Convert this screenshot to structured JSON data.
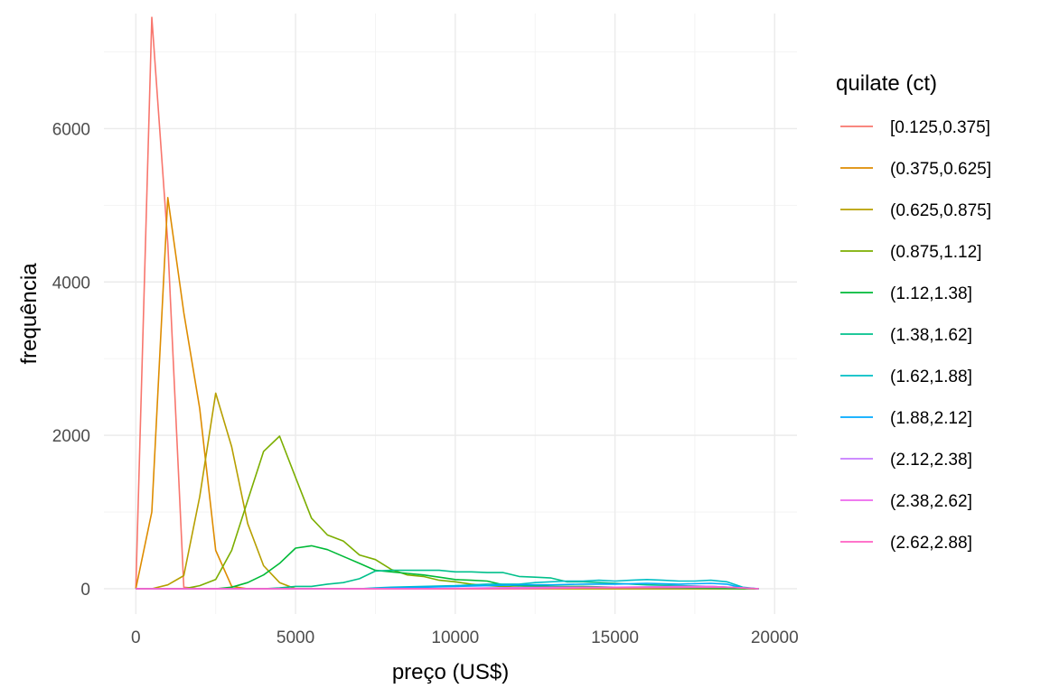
{
  "chart_data": {
    "type": "line",
    "xlabel": "preço (US$)",
    "ylabel": "frequência",
    "xlim": [
      -1000,
      20700
    ],
    "ylim": [
      -330,
      7500
    ],
    "x_ticks": [
      0,
      5000,
      10000,
      15000,
      20000
    ],
    "x_tick_labels": [
      "0",
      "5000",
      "10000",
      "15000",
      "20000"
    ],
    "y_ticks": [
      0,
      2000,
      4000,
      6000
    ],
    "y_tick_labels": [
      "0",
      "2000",
      "4000",
      "6000"
    ],
    "x_minor": [
      2500,
      7500,
      12500,
      17500
    ],
    "y_minor": [
      1000,
      3000,
      5000,
      7000
    ],
    "grid": true,
    "legend": {
      "title": "quilate (ct)",
      "position": "right"
    },
    "series": [
      {
        "name": "[0.125,0.375]",
        "color": "#F8766D",
        "points": [
          [
            0,
            0
          ],
          [
            500,
            7450
          ],
          [
            1000,
            4500
          ],
          [
            1500,
            20
          ],
          [
            2000,
            0
          ],
          [
            19500,
            0
          ]
        ]
      },
      {
        "name": "(0.375,0.625]",
        "color": "#DE8C00",
        "points": [
          [
            0,
            0
          ],
          [
            500,
            1000
          ],
          [
            1000,
            5100
          ],
          [
            1500,
            3600
          ],
          [
            2000,
            2350
          ],
          [
            2500,
            500
          ],
          [
            3000,
            30
          ],
          [
            3500,
            0
          ],
          [
            19500,
            0
          ]
        ]
      },
      {
        "name": "(0.625,0.875]",
        "color": "#B79F00",
        "points": [
          [
            0,
            0
          ],
          [
            500,
            0
          ],
          [
            1000,
            50
          ],
          [
            1500,
            170
          ],
          [
            2000,
            1200
          ],
          [
            2500,
            2550
          ],
          [
            3000,
            1850
          ],
          [
            3500,
            850
          ],
          [
            4000,
            300
          ],
          [
            4500,
            80
          ],
          [
            5000,
            0
          ],
          [
            19500,
            0
          ]
        ]
      },
      {
        "name": "(0.875,1.12]",
        "color": "#7CAE00",
        "points": [
          [
            0,
            0
          ],
          [
            1000,
            0
          ],
          [
            1500,
            0
          ],
          [
            2000,
            40
          ],
          [
            2500,
            120
          ],
          [
            3000,
            500
          ],
          [
            3500,
            1150
          ],
          [
            4000,
            1790
          ],
          [
            4500,
            1990
          ],
          [
            5000,
            1450
          ],
          [
            5500,
            920
          ],
          [
            6000,
            700
          ],
          [
            6500,
            620
          ],
          [
            7000,
            440
          ],
          [
            7500,
            380
          ],
          [
            8000,
            250
          ],
          [
            8500,
            180
          ],
          [
            9000,
            160
          ],
          [
            9500,
            110
          ],
          [
            10000,
            90
          ],
          [
            10500,
            60
          ],
          [
            11000,
            40
          ],
          [
            12000,
            20
          ],
          [
            14000,
            10
          ],
          [
            19500,
            0
          ]
        ]
      },
      {
        "name": "(1.12,1.38]",
        "color": "#00BA38",
        "points": [
          [
            0,
            0
          ],
          [
            2000,
            0
          ],
          [
            2500,
            0
          ],
          [
            3000,
            20
          ],
          [
            3500,
            80
          ],
          [
            4000,
            180
          ],
          [
            4500,
            330
          ],
          [
            5000,
            530
          ],
          [
            5500,
            560
          ],
          [
            6000,
            510
          ],
          [
            6500,
            420
          ],
          [
            7000,
            330
          ],
          [
            7500,
            240
          ],
          [
            8000,
            220
          ],
          [
            8500,
            200
          ],
          [
            9000,
            180
          ],
          [
            9500,
            150
          ],
          [
            10000,
            120
          ],
          [
            10500,
            110
          ],
          [
            11000,
            100
          ],
          [
            11500,
            50
          ],
          [
            12000,
            40
          ],
          [
            13000,
            30
          ],
          [
            14000,
            30
          ],
          [
            15000,
            20
          ],
          [
            19500,
            0
          ]
        ]
      },
      {
        "name": "(1.38,1.62]",
        "color": "#00C08B",
        "points": [
          [
            0,
            0
          ],
          [
            4000,
            0
          ],
          [
            4500,
            10
          ],
          [
            5000,
            30
          ],
          [
            5500,
            30
          ],
          [
            6000,
            60
          ],
          [
            6500,
            80
          ],
          [
            7000,
            130
          ],
          [
            7500,
            230
          ],
          [
            8000,
            240
          ],
          [
            8500,
            240
          ],
          [
            9000,
            240
          ],
          [
            9500,
            240
          ],
          [
            10000,
            220
          ],
          [
            10500,
            220
          ],
          [
            11000,
            210
          ],
          [
            11500,
            210
          ],
          [
            12000,
            160
          ],
          [
            12500,
            150
          ],
          [
            13000,
            140
          ],
          [
            13500,
            90
          ],
          [
            14000,
            90
          ],
          [
            15000,
            70
          ],
          [
            16000,
            50
          ],
          [
            17000,
            40
          ],
          [
            18000,
            30
          ],
          [
            19000,
            10
          ],
          [
            19500,
            0
          ]
        ]
      },
      {
        "name": "(1.62,1.88]",
        "color": "#00BFC4",
        "points": [
          [
            0,
            0
          ],
          [
            7000,
            0
          ],
          [
            7500,
            10
          ],
          [
            8000,
            20
          ],
          [
            9000,
            30
          ],
          [
            10000,
            40
          ],
          [
            11000,
            60
          ],
          [
            12000,
            60
          ],
          [
            12500,
            80
          ],
          [
            13000,
            90
          ],
          [
            13500,
            100
          ],
          [
            14000,
            100
          ],
          [
            14500,
            110
          ],
          [
            15000,
            100
          ],
          [
            15500,
            110
          ],
          [
            16000,
            120
          ],
          [
            16500,
            110
          ],
          [
            17000,
            100
          ],
          [
            17500,
            100
          ],
          [
            18000,
            110
          ],
          [
            18500,
            90
          ],
          [
            19000,
            20
          ],
          [
            19500,
            0
          ]
        ]
      },
      {
        "name": "(1.88,2.12]",
        "color": "#00A9FF",
        "points": [
          [
            0,
            0
          ],
          [
            7000,
            0
          ],
          [
            8000,
            10
          ],
          [
            9000,
            20
          ],
          [
            10000,
            30
          ],
          [
            11000,
            40
          ],
          [
            12000,
            50
          ],
          [
            13000,
            50
          ],
          [
            14000,
            60
          ],
          [
            15000,
            60
          ],
          [
            16000,
            70
          ],
          [
            17000,
            60
          ],
          [
            18000,
            70
          ],
          [
            18500,
            60
          ],
          [
            19000,
            10
          ],
          [
            19500,
            0
          ]
        ]
      },
      {
        "name": "(2.12,2.38]",
        "color": "#C77CFF",
        "points": [
          [
            0,
            0
          ],
          [
            9000,
            0
          ],
          [
            11000,
            10
          ],
          [
            13000,
            20
          ],
          [
            15000,
            20
          ],
          [
            17000,
            30
          ],
          [
            18000,
            30
          ],
          [
            19000,
            10
          ],
          [
            19500,
            0
          ]
        ]
      },
      {
        "name": "(2.38,2.62]",
        "color": "#ED68ED",
        "points": [
          [
            0,
            0
          ],
          [
            9000,
            0
          ],
          [
            12000,
            10
          ],
          [
            14000,
            20
          ],
          [
            16000,
            20
          ],
          [
            18000,
            30
          ],
          [
            19000,
            10
          ],
          [
            19500,
            0
          ]
        ]
      },
      {
        "name": "(2.62,2.88]",
        "color": "#FF61C3",
        "points": [
          [
            0,
            0
          ],
          [
            12000,
            0
          ],
          [
            14000,
            10
          ],
          [
            17000,
            15
          ],
          [
            18500,
            20
          ],
          [
            19500,
            0
          ]
        ]
      }
    ]
  }
}
